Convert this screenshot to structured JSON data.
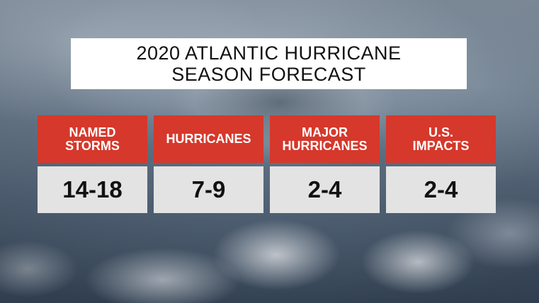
{
  "title": {
    "line1": "2020 ATLANTIC HURRICANE",
    "line2": "SEASON FORECAST"
  },
  "colors": {
    "header_red": "#d6382b",
    "value_gray": "#e3e3e3",
    "title_white": "#ffffff"
  },
  "stats": [
    {
      "label_line1": "NAMED",
      "label_line2": "STORMS",
      "value": "14-18"
    },
    {
      "label_line1": "HURRICANES",
      "label_line2": "",
      "value": "7-9"
    },
    {
      "label_line1": "MAJOR",
      "label_line2": "HURRICANES",
      "value": "2-4"
    },
    {
      "label_line1": "U.S.",
      "label_line2": "IMPACTS",
      "value": "2-4"
    }
  ]
}
